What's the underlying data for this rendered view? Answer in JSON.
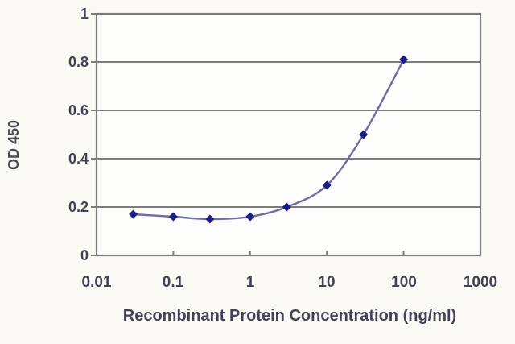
{
  "figure": {
    "background": "#fbf9f3",
    "plot_background": "#fdfdfb"
  },
  "chart_data": {
    "type": "line",
    "title": "",
    "xlabel": "Recombinant Protein Concentration (ng/ml)",
    "ylabel": "OD 450",
    "x_scale": "log",
    "xlim": [
      0.01,
      1000
    ],
    "ylim": [
      0,
      1
    ],
    "x": [
      0.03,
      0.1,
      0.3,
      1,
      3,
      10,
      30,
      100
    ],
    "values": [
      0.17,
      0.16,
      0.15,
      0.16,
      0.2,
      0.29,
      0.5,
      0.81
    ],
    "series_name": "OD 450",
    "x_tick_labels": [
      "0.01",
      "0.1",
      "1",
      "10",
      "100",
      "1000"
    ],
    "x_tick_values": [
      0.01,
      0.1,
      1,
      10,
      100,
      1000
    ],
    "y_tick_labels": [
      "1",
      "0.8",
      "0.6",
      "0.4",
      "0.2",
      "0"
    ],
    "y_tick_values": [
      1,
      0.8,
      0.6,
      0.4,
      0.2,
      0
    ],
    "grid": "horizontal",
    "legend": "none",
    "marker": "diamond",
    "colors": {
      "line": "#6b6bb2",
      "marker": "#1b1b8e",
      "axis": "#7c7c7c",
      "grid": "#7c7c7c",
      "tick_label": "#424254",
      "axis_label": "#42425a"
    }
  }
}
